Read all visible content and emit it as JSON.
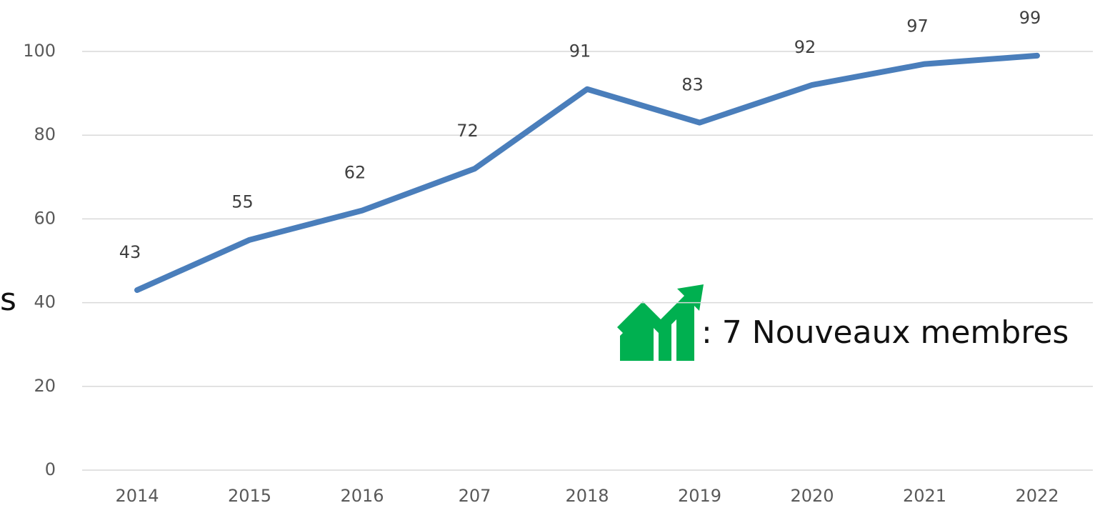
{
  "chart_data": {
    "type": "line",
    "categories": [
      "2014",
      "2015",
      "2016",
      "207",
      "2018",
      "2019",
      "2020",
      "2021",
      "2022"
    ],
    "values": [
      43,
      55,
      62,
      72,
      91,
      83,
      92,
      97,
      99
    ],
    "color": "#4a7ebb",
    "ylim": [
      0,
      100
    ],
    "yticks": [
      0,
      20,
      40,
      60,
      80,
      100
    ],
    "grid": true,
    "annotation": ": 7 Nouveaux membres",
    "cropped_text": "s"
  }
}
